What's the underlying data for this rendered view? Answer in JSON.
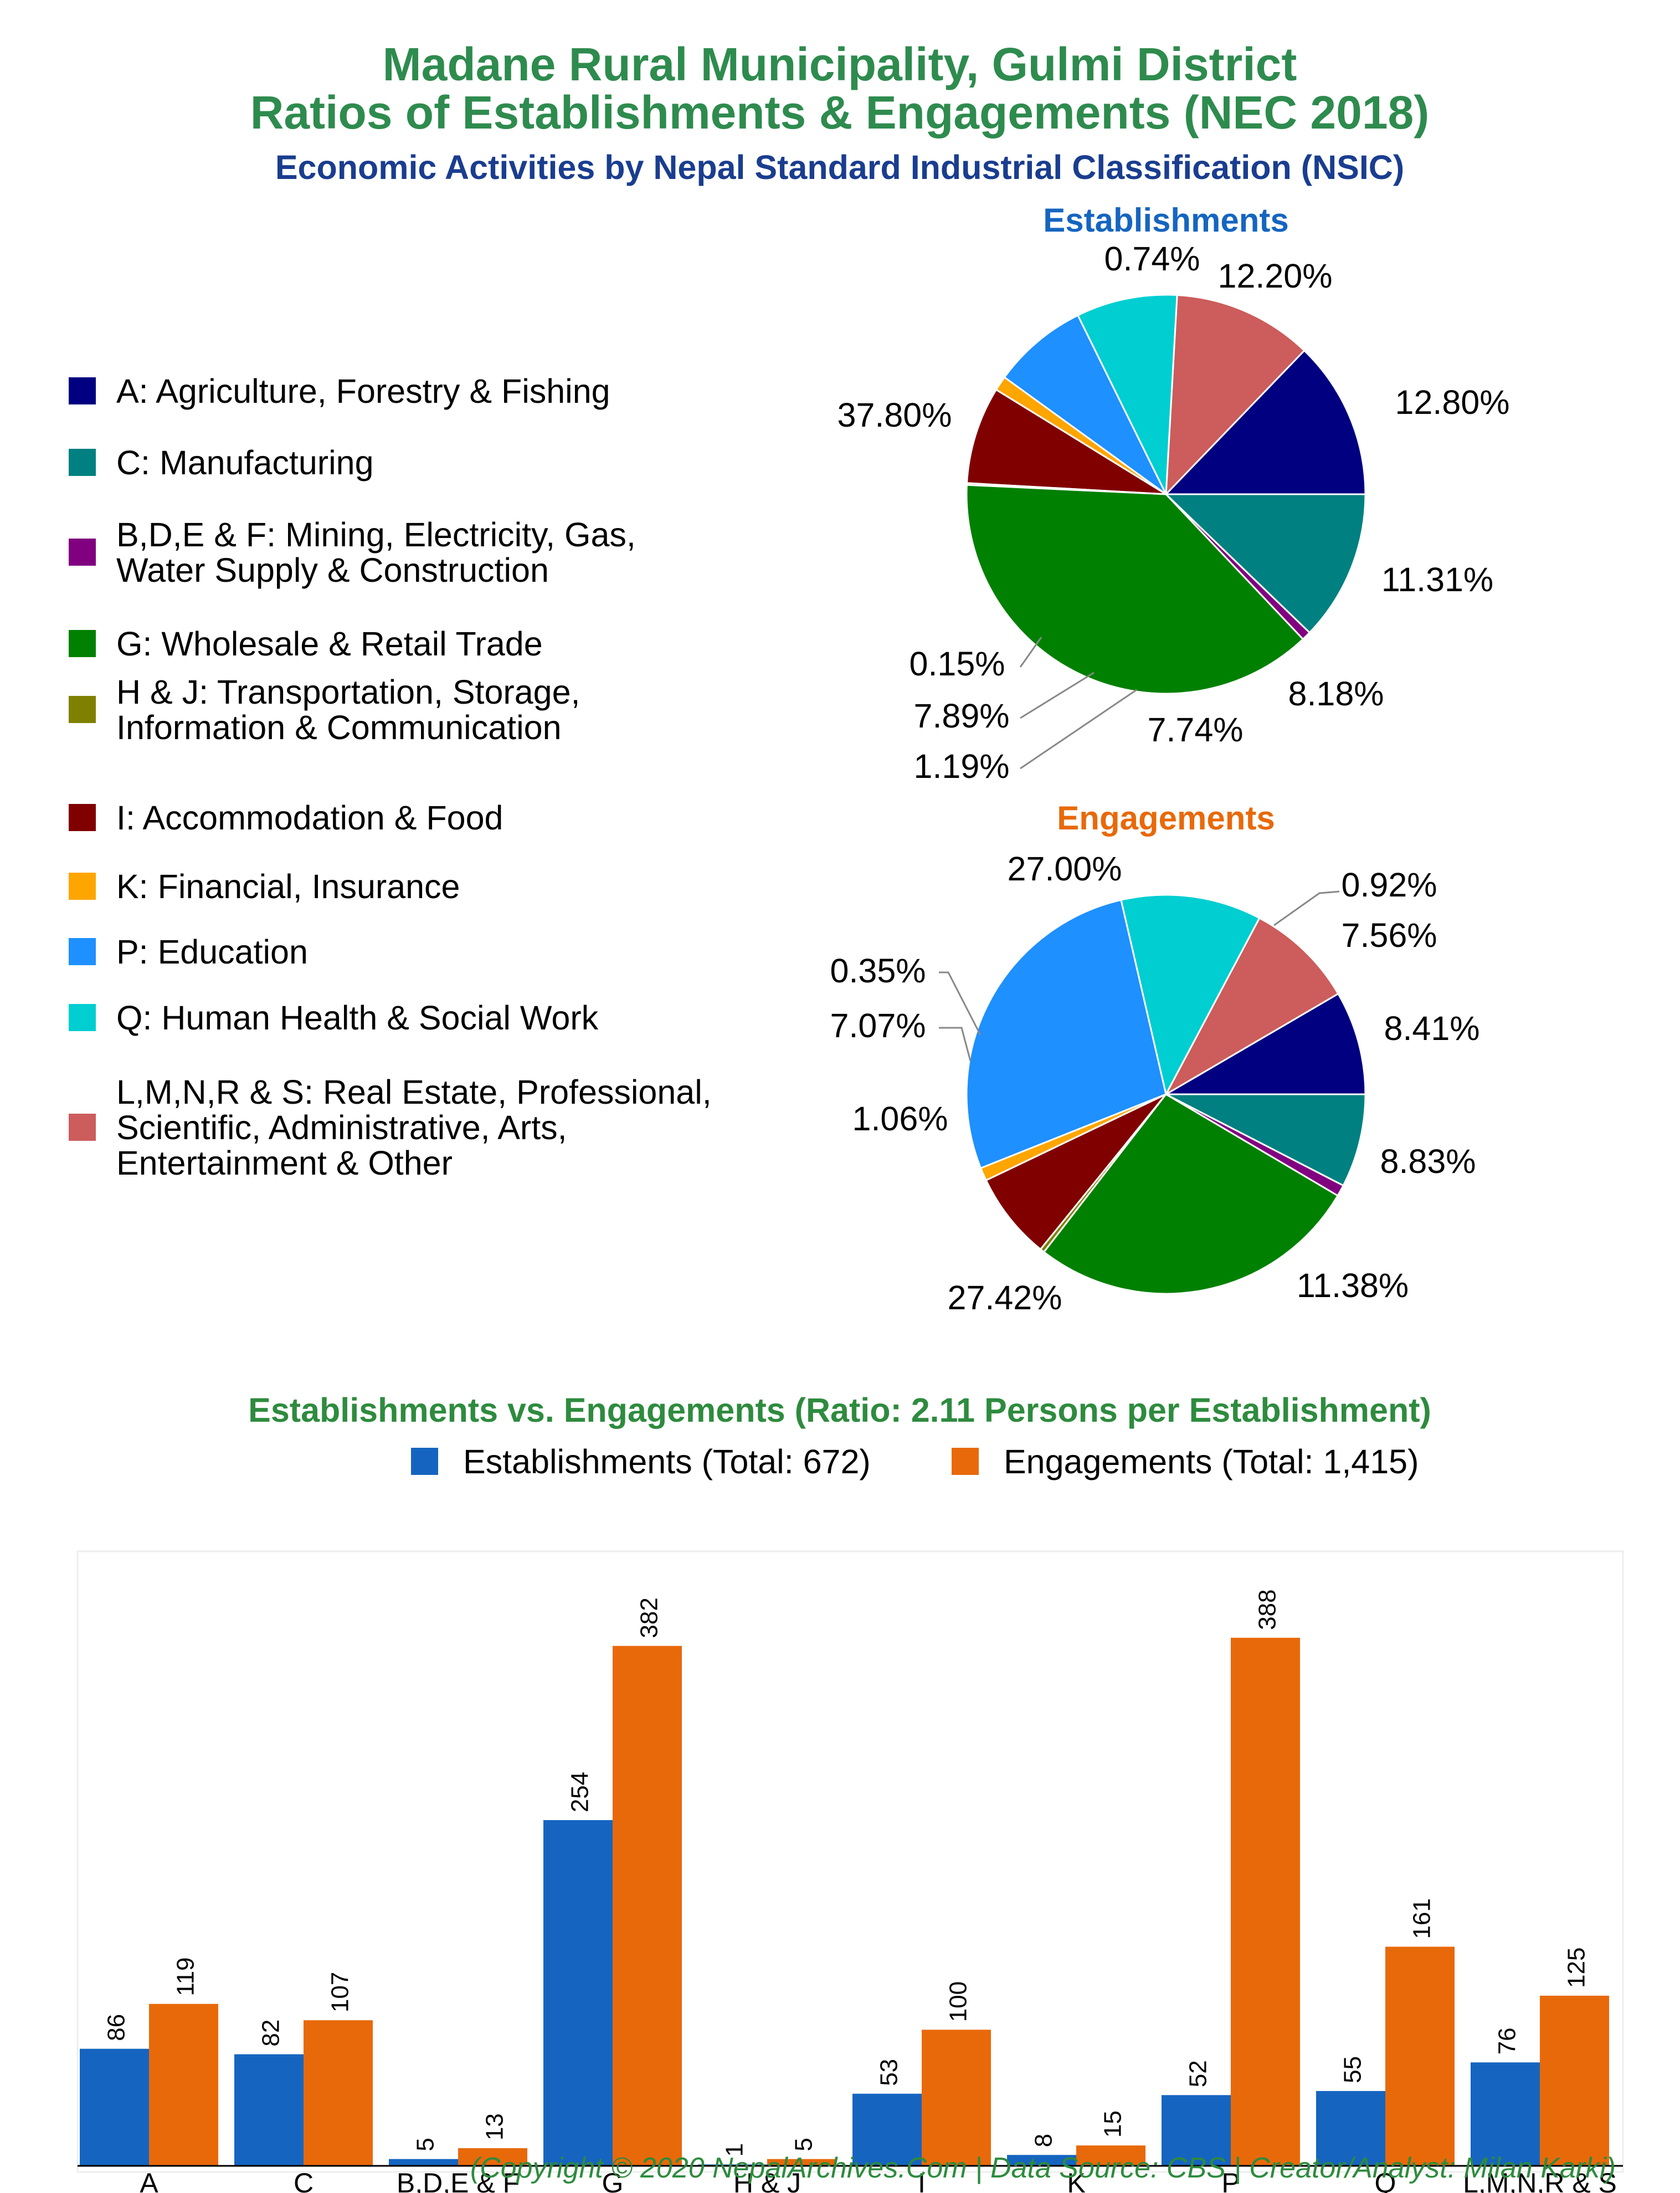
{
  "header": {
    "title_line1": "Madane Rural Municipality, Gulmi District",
    "title_line2": "Ratios of Establishments & Engagements (NEC 2018)",
    "subtitle": "Economic Activities by Nepal Standard Industrial Classification (NSIC)"
  },
  "legend": [
    {
      "lines": [
        "A: Agriculture, Forestry & Fishing"
      ],
      "color": "#000080"
    },
    {
      "lines": [
        "C: Manufacturing"
      ],
      "color": "#008080"
    },
    {
      "lines": [
        "B,D,E & F: Mining, Electricity, Gas,",
        "Water Supply & Construction"
      ],
      "color": "#800080"
    },
    {
      "lines": [
        "G: Wholesale & Retail Trade"
      ],
      "color": "#008000"
    },
    {
      "lines": [
        "H & J: Transportation, Storage,",
        "Information & Communication"
      ],
      "color": "#808000"
    },
    {
      "lines": [
        "I: Accommodation & Food"
      ],
      "color": "#800000"
    },
    {
      "lines": [
        "K: Financial, Insurance"
      ],
      "color": "#FFA500"
    },
    {
      "lines": [
        "P: Education"
      ],
      "color": "#1E90FF"
    },
    {
      "lines": [
        "Q: Human Health & Social Work"
      ],
      "color": "#00CED1"
    },
    {
      "lines": [
        "L,M,N,R & S: Real Estate, Professional,",
        "Scientific, Administrative, Arts,",
        "Entertainment & Other"
      ],
      "color": "#CD5C5C"
    }
  ],
  "chart_data": [
    {
      "type": "pie",
      "title": "Establishments",
      "title_color": "#1565C0",
      "slices": [
        {
          "category": "A",
          "value": 12.8,
          "label": "12.80%"
        },
        {
          "category": "L,M,N,R & S",
          "value": 11.31,
          "label": "11.31%"
        },
        {
          "category": "Q",
          "value": 8.18,
          "label": "8.18%"
        },
        {
          "category": "P",
          "value": 7.74,
          "label": "7.74%"
        },
        {
          "category": "K",
          "value": 1.19,
          "label": "1.19%"
        },
        {
          "category": "I",
          "value": 7.89,
          "label": "7.89%"
        },
        {
          "category": "H & J",
          "value": 0.15,
          "label": "0.15%"
        },
        {
          "category": "G",
          "value": 37.8,
          "label": "37.80%"
        },
        {
          "category": "B,D,E & F",
          "value": 0.74,
          "label": "0.74%"
        },
        {
          "category": "C",
          "value": 12.2,
          "label": "12.20%"
        }
      ]
    },
    {
      "type": "pie",
      "title": "Engagements",
      "title_color": "#E8690A",
      "slices": [
        {
          "category": "A",
          "value": 8.41,
          "label": "8.41%"
        },
        {
          "category": "L,M,N,R & S",
          "value": 8.83,
          "label": "8.83%"
        },
        {
          "category": "Q",
          "value": 11.38,
          "label": "11.38%"
        },
        {
          "category": "P",
          "value": 27.42,
          "label": "27.42%"
        },
        {
          "category": "K",
          "value": 1.06,
          "label": "1.06%"
        },
        {
          "category": "I",
          "value": 7.07,
          "label": "7.07%"
        },
        {
          "category": "H & J",
          "value": 0.35,
          "label": "0.35%"
        },
        {
          "category": "G",
          "value": 27.0,
          "label": "27.00%"
        },
        {
          "category": "B,D,E & F",
          "value": 0.92,
          "label": "0.92%"
        },
        {
          "category": "C",
          "value": 7.56,
          "label": "7.56%"
        }
      ]
    },
    {
      "type": "bar",
      "title": "Establishments vs. Engagements (Ratio: 2.11 Persons per Establishment)",
      "title_color": "#2E8B3E",
      "categories": [
        "A",
        "C",
        "B,D,E & F",
        "G",
        "H & J",
        "I",
        "K",
        "P",
        "Q",
        "L,M,N,R & S"
      ],
      "series": [
        {
          "name": "Establishments (Total: 672)",
          "color": "#1565C0",
          "values": [
            86,
            82,
            5,
            254,
            1,
            53,
            8,
            52,
            55,
            76
          ]
        },
        {
          "name": "Engagements (Total: 1,415)",
          "color": "#E8690A",
          "values": [
            119,
            107,
            13,
            382,
            5,
            100,
            15,
            388,
            161,
            125
          ]
        }
      ],
      "ylim": [
        0,
        400
      ],
      "legend_position": "top"
    }
  ],
  "colors": {
    "title": "#2E8B4E",
    "subtitle": "#1A3D8F",
    "footer": "#2E8B3E"
  },
  "footer": {
    "credit": "(Copyright © 2020 NepalArchives.Com | Data Source: CBS | Creator/Analyst: Milan Karki)"
  }
}
